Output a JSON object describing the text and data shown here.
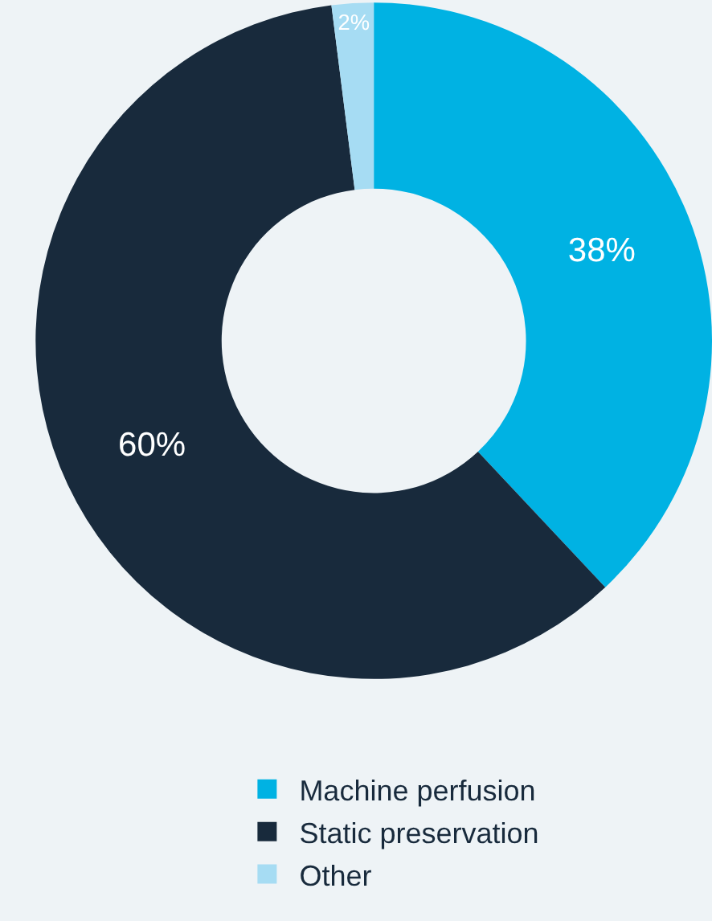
{
  "chart_data": {
    "type": "donut",
    "categories": [
      "Machine perfusion",
      "Static preservation",
      "Other"
    ],
    "values": [
      38,
      60,
      2
    ],
    "colors": [
      "#00b2e3",
      "#182a3c",
      "#a6dcf3"
    ],
    "value_labels": [
      "38%",
      "60%",
      "2%"
    ],
    "legend": "bottom"
  }
}
